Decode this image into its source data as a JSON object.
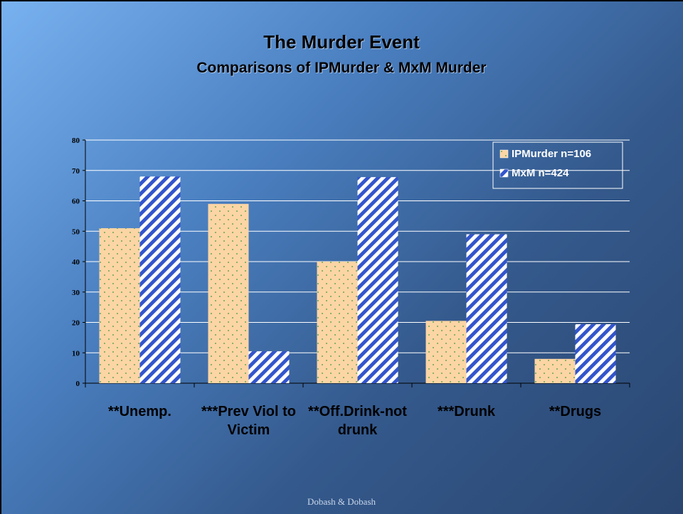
{
  "chart_data": {
    "type": "bar",
    "title": "The Murder Event",
    "subtitle": "Comparisons of IPMurder & MxM Murder",
    "categories": [
      "**Unemp.",
      "***Prev Viol to Victim",
      "**Off.Drink-not drunk",
      "***Drunk",
      "**Drugs"
    ],
    "series": [
      {
        "name": "IPMurder n=106",
        "color": "#fcd5a5",
        "values": [
          51,
          59,
          40,
          20.5,
          8
        ]
      },
      {
        "name": "MxM n=424",
        "color": "#3355cc",
        "values": [
          68,
          10.5,
          67.8,
          49,
          19.4
        ]
      }
    ],
    "ylim": [
      0,
      80
    ],
    "yticks": [
      0,
      10,
      20,
      30,
      40,
      50,
      60,
      70,
      80
    ],
    "grid": true,
    "legend": "top-right",
    "footer": "Dobash & Dobash"
  }
}
